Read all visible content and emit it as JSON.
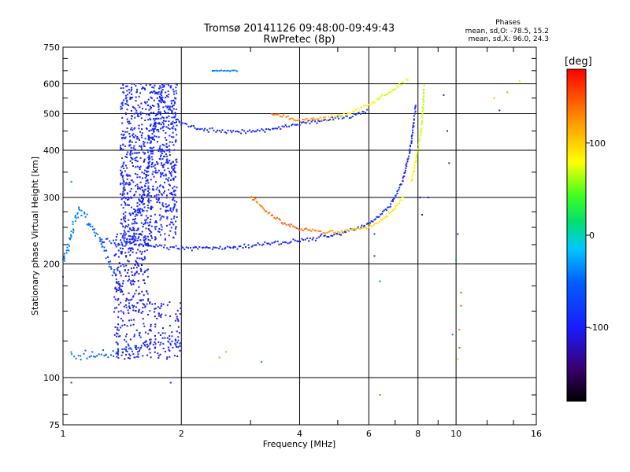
{
  "chart_data": {
    "type": "scatter",
    "title": "Tromsø 20141126 09:48:00-09:49:43",
    "subtitle": "RwPretec (8p)",
    "xlabel": "Frequency [MHz]",
    "ylabel": "Stationary phase Virtual Height [km]",
    "x_scale": "log",
    "y_scale": "log",
    "xlim": [
      1,
      16
    ],
    "ylim": [
      75,
      750
    ],
    "x_ticks": [
      1,
      2,
      4,
      6,
      8,
      10,
      16
    ],
    "x_tick_labels": [
      "1",
      "2",
      "4",
      "6",
      "8",
      "10",
      "16"
    ],
    "y_ticks": [
      75,
      100,
      200,
      300,
      400,
      500,
      600,
      750
    ],
    "y_tick_labels": [
      "75",
      "100",
      "200",
      "300",
      "400",
      "500",
      "600",
      "750"
    ],
    "grid": true,
    "stats": {
      "heading": "Phases",
      "o_line": "mean, sd,O: -78.5, 15.2",
      "x_line": "mean, sd,X:  96.0, 24.3"
    },
    "colorbar": {
      "label": "[deg]",
      "range": [
        -180,
        180
      ],
      "ticks": [
        100,
        0,
        -100
      ],
      "tick_labels": [
        "100",
        "0",
        "-100"
      ]
    },
    "series": [
      {
        "kind": "curve",
        "values": [
          [
            1.44,
            228,
            -90
          ],
          [
            1.6,
            224,
            -92
          ],
          [
            1.8,
            222,
            -95
          ],
          [
            2.0,
            221,
            -98
          ],
          [
            2.3,
            220,
            -95
          ],
          [
            2.7,
            221,
            -95
          ],
          [
            3.2,
            225,
            -94
          ],
          [
            3.7,
            228,
            -95
          ],
          [
            4.3,
            233,
            -94
          ],
          [
            5.0,
            240,
            -92
          ],
          [
            5.6,
            248,
            -90
          ],
          [
            6.2,
            260,
            -92
          ],
          [
            6.8,
            285,
            -90
          ],
          [
            7.3,
            330,
            -92
          ],
          [
            7.6,
            390,
            -95
          ],
          [
            7.8,
            460,
            -95
          ],
          [
            7.9,
            530,
            -95
          ]
        ],
        "scatter": 0.012
      },
      {
        "kind": "curve",
        "values": [
          [
            3.0,
            303,
            130
          ],
          [
            3.3,
            275,
            140
          ],
          [
            3.6,
            258,
            150
          ],
          [
            4.0,
            248,
            145
          ],
          [
            4.5,
            244,
            130
          ],
          [
            5.0,
            243,
            115
          ],
          [
            5.5,
            246,
            100
          ],
          [
            6.0,
            250,
            95
          ],
          [
            6.5,
            262,
            90
          ],
          [
            7.0,
            280,
            85
          ],
          [
            7.4,
            305,
            80
          ]
        ],
        "scatter": 0.01
      },
      {
        "kind": "curve",
        "values": [
          [
            7.7,
            330,
            80
          ],
          [
            7.95,
            390,
            75
          ],
          [
            8.1,
            430,
            72
          ],
          [
            8.2,
            480,
            70
          ],
          [
            8.25,
            540,
            68
          ],
          [
            8.3,
            600,
            70
          ]
        ],
        "scatter": 0.01
      },
      {
        "kind": "curve",
        "values": [
          [
            1.7,
            580,
            -95
          ],
          [
            1.85,
            520,
            -92
          ],
          [
            2.0,
            470,
            -90
          ],
          [
            2.3,
            455,
            -90
          ],
          [
            2.8,
            445,
            -92
          ],
          [
            3.4,
            455,
            -90
          ],
          [
            4.0,
            470,
            -88
          ],
          [
            4.6,
            480,
            -85
          ],
          [
            5.3,
            490,
            -80
          ],
          [
            6.0,
            510,
            -70
          ]
        ],
        "scatter": 0.012
      },
      {
        "kind": "curve",
        "values": [
          [
            3.4,
            500,
            140
          ],
          [
            4.0,
            480,
            130
          ],
          [
            4.6,
            485,
            110
          ],
          [
            5.3,
            500,
            90
          ],
          [
            6.0,
            530,
            80
          ],
          [
            6.8,
            570,
            70
          ],
          [
            7.6,
            620,
            70
          ]
        ],
        "scatter": 0.012
      },
      {
        "kind": "curve",
        "values": [
          [
            1.25,
            230,
            -80
          ],
          [
            1.45,
            225,
            -85
          ],
          [
            1.6,
            300,
            -95
          ],
          [
            1.7,
            450,
            -95
          ],
          [
            1.8,
            600,
            -95
          ]
        ],
        "scatter": 0.025
      },
      {
        "kind": "curve",
        "values": [
          [
            1.05,
            115,
            -40
          ],
          [
            1.2,
            113,
            -50
          ],
          [
            1.35,
            115,
            -60
          ],
          [
            1.55,
            120,
            -90
          ],
          [
            1.8,
            125,
            -95
          ],
          [
            2.0,
            122,
            -95
          ]
        ],
        "scatter": 0.03
      },
      {
        "kind": "curve",
        "values": [
          [
            1.0,
            200,
            -40
          ],
          [
            1.05,
            240,
            -40
          ],
          [
            1.1,
            280,
            -40
          ],
          [
            1.25,
            230,
            -50
          ],
          [
            1.4,
            170,
            -80
          ]
        ],
        "scatter": 0.025
      },
      {
        "kind": "curve",
        "values": [
          [
            2.4,
            650,
            -40
          ],
          [
            2.8,
            650,
            -40
          ]
        ],
        "scatter": 0.003
      }
    ],
    "cloud": [
      {
        "xmin": 1.4,
        "xmax": 1.95,
        "ymin": 230,
        "ymax": 600,
        "n": 900,
        "phase": -95,
        "spread": 10
      },
      {
        "xmin": 1.35,
        "xmax": 1.65,
        "ymin": 160,
        "ymax": 240,
        "n": 180,
        "phase": -100,
        "spread": 10
      },
      {
        "xmin": 1.35,
        "xmax": 2.0,
        "ymin": 112,
        "ymax": 160,
        "n": 220,
        "phase": -100,
        "spread": 20
      }
    ],
    "sparse_points": [
      [
        1.05,
        330,
        -40
      ],
      [
        1.0,
        185,
        -40
      ],
      [
        1.05,
        97,
        -80
      ],
      [
        1.88,
        97,
        -95
      ],
      [
        2.5,
        113,
        120
      ],
      [
        2.6,
        117,
        115
      ],
      [
        3.2,
        110,
        -40
      ],
      [
        6.4,
        90,
        150
      ],
      [
        6.4,
        180,
        -40
      ],
      [
        6.2,
        210,
        -70
      ],
      [
        6.2,
        240,
        -70
      ],
      [
        8.2,
        270,
        -110
      ],
      [
        8.1,
        300,
        -100
      ],
      [
        8.5,
        300,
        -110
      ],
      [
        9.6,
        370,
        -95
      ],
      [
        9.5,
        450,
        -95
      ],
      [
        9.3,
        560,
        -95
      ],
      [
        10.1,
        240,
        -100
      ],
      [
        10.0,
        205,
        -40
      ],
      [
        10.3,
        168,
        150
      ],
      [
        10.3,
        155,
        150
      ],
      [
        10.2,
        134,
        130
      ],
      [
        10.2,
        120,
        150
      ],
      [
        10.1,
        112,
        100
      ],
      [
        9.8,
        130,
        -40
      ],
      [
        12.5,
        550,
        110
      ],
      [
        13.5,
        570,
        120
      ],
      [
        14.5,
        610,
        90
      ],
      [
        12.9,
        510,
        -95
      ]
    ]
  }
}
